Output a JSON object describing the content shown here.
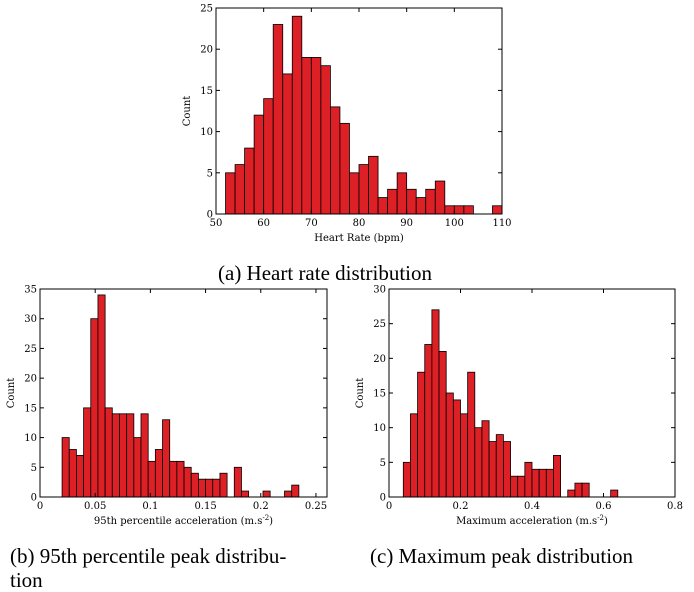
{
  "charts": [
    {
      "type": "bar",
      "xlabel": "Heart Rate (bpm)",
      "ylabel": "Count",
      "xlim": [
        50,
        110
      ],
      "ylim": [
        0,
        25
      ],
      "xticks": [
        50,
        60,
        70,
        80,
        90,
        100,
        110
      ],
      "yticks": [
        0,
        5,
        10,
        15,
        20,
        25
      ],
      "bar_width": 2,
      "bars": [
        {
          "x": 54,
          "y": 5
        },
        {
          "x": 56,
          "y": 6
        },
        {
          "x": 58,
          "y": 8
        },
        {
          "x": 60,
          "y": 12
        },
        {
          "x": 62,
          "y": 14
        },
        {
          "x": 64,
          "y": 23
        },
        {
          "x": 66,
          "y": 17
        },
        {
          "x": 68,
          "y": 24
        },
        {
          "x": 70,
          "y": 19
        },
        {
          "x": 72,
          "y": 19
        },
        {
          "x": 74,
          "y": 18
        },
        {
          "x": 76,
          "y": 13
        },
        {
          "x": 78,
          "y": 11
        },
        {
          "x": 80,
          "y": 5
        },
        {
          "x": 82,
          "y": 6
        },
        {
          "x": 84,
          "y": 7
        },
        {
          "x": 86,
          "y": 2
        },
        {
          "x": 88,
          "y": 3
        },
        {
          "x": 90,
          "y": 5
        },
        {
          "x": 92,
          "y": 3
        },
        {
          "x": 94,
          "y": 2
        },
        {
          "x": 96,
          "y": 3
        },
        {
          "x": 98,
          "y": 4
        },
        {
          "x": 100,
          "y": 1
        },
        {
          "x": 102,
          "y": 1
        },
        {
          "x": 104,
          "y": 1
        },
        {
          "x": 110,
          "y": 1
        }
      ],
      "caption": "(a) Heart rate distribution"
    },
    {
      "type": "bar",
      "xlabel": "95th percentile acceleration (m.s",
      "xlabel_sup": "-2",
      "xlabel_end": ")",
      "ylabel": "Count",
      "xlim": [
        0,
        0.26
      ],
      "ylim": [
        0,
        35
      ],
      "xticks": [
        0,
        0.05,
        0.1,
        0.15,
        0.2,
        0.25
      ],
      "yticks": [
        0,
        5,
        10,
        15,
        20,
        25,
        30,
        35
      ],
      "bar_width": 0.0065,
      "bars": [
        {
          "x": 0.0265,
          "y": 10
        },
        {
          "x": 0.033,
          "y": 8
        },
        {
          "x": 0.0395,
          "y": 7
        },
        {
          "x": 0.046,
          "y": 15
        },
        {
          "x": 0.0525,
          "y": 30
        },
        {
          "x": 0.059,
          "y": 34
        },
        {
          "x": 0.0655,
          "y": 15
        },
        {
          "x": 0.072,
          "y": 14
        },
        {
          "x": 0.0785,
          "y": 14
        },
        {
          "x": 0.085,
          "y": 14
        },
        {
          "x": 0.0915,
          "y": 10
        },
        {
          "x": 0.098,
          "y": 14
        },
        {
          "x": 0.1045,
          "y": 6
        },
        {
          "x": 0.111,
          "y": 8
        },
        {
          "x": 0.1175,
          "y": 13
        },
        {
          "x": 0.124,
          "y": 6
        },
        {
          "x": 0.1305,
          "y": 6
        },
        {
          "x": 0.137,
          "y": 5
        },
        {
          "x": 0.1435,
          "y": 4
        },
        {
          "x": 0.15,
          "y": 3
        },
        {
          "x": 0.1565,
          "y": 3
        },
        {
          "x": 0.163,
          "y": 3
        },
        {
          "x": 0.1695,
          "y": 4
        },
        {
          "x": 0.1825,
          "y": 5
        },
        {
          "x": 0.189,
          "y": 1
        },
        {
          "x": 0.2085,
          "y": 1
        },
        {
          "x": 0.228,
          "y": 1
        },
        {
          "x": 0.2345,
          "y": 2
        }
      ],
      "caption_lines": [
        "(b) 95th percentile peak distribu-",
        "tion"
      ]
    },
    {
      "type": "bar",
      "xlabel": "Maximum acceleration (m.s",
      "xlabel_sup": "-2",
      "xlabel_end": ")",
      "ylabel": "Count",
      "xlim": [
        0,
        0.8
      ],
      "ylim": [
        0,
        30
      ],
      "xticks": [
        0,
        0.2,
        0.4,
        0.6,
        0.8
      ],
      "xticklabels": [
        "0",
        "0.2",
        "0.4",
        "0.6",
        "0.8"
      ],
      "yticks": [
        0,
        5,
        10,
        15,
        20,
        25,
        30
      ],
      "bar_width": 0.02,
      "bars": [
        {
          "x": 0.06,
          "y": 5
        },
        {
          "x": 0.08,
          "y": 12
        },
        {
          "x": 0.1,
          "y": 18
        },
        {
          "x": 0.12,
          "y": 22
        },
        {
          "x": 0.14,
          "y": 27
        },
        {
          "x": 0.16,
          "y": 21
        },
        {
          "x": 0.18,
          "y": 15
        },
        {
          "x": 0.2,
          "y": 14
        },
        {
          "x": 0.22,
          "y": 12
        },
        {
          "x": 0.24,
          "y": 18
        },
        {
          "x": 0.26,
          "y": 10
        },
        {
          "x": 0.28,
          "y": 11
        },
        {
          "x": 0.3,
          "y": 8
        },
        {
          "x": 0.32,
          "y": 9
        },
        {
          "x": 0.34,
          "y": 8
        },
        {
          "x": 0.36,
          "y": 3
        },
        {
          "x": 0.38,
          "y": 3
        },
        {
          "x": 0.4,
          "y": 5
        },
        {
          "x": 0.42,
          "y": 4
        },
        {
          "x": 0.44,
          "y": 4
        },
        {
          "x": 0.46,
          "y": 4
        },
        {
          "x": 0.48,
          "y": 6
        },
        {
          "x": 0.52,
          "y": 1
        },
        {
          "x": 0.54,
          "y": 2
        },
        {
          "x": 0.56,
          "y": 2
        },
        {
          "x": 0.64,
          "y": 1
        }
      ],
      "caption": "(c) Maximum peak distribution"
    }
  ]
}
